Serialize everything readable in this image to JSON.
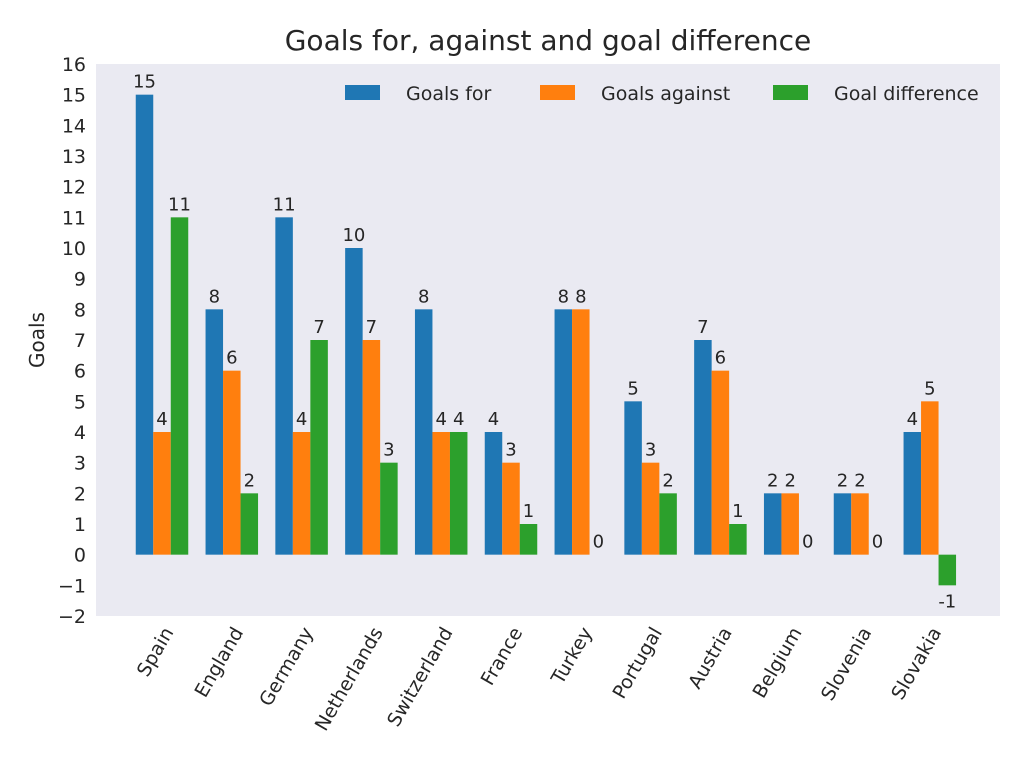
{
  "chart_data": {
    "type": "bar",
    "title": "Goals for, against and goal difference",
    "xlabel": "",
    "ylabel": "Goals",
    "ylim": [
      -2,
      16
    ],
    "yticks": [
      -2,
      -1,
      0,
      1,
      2,
      3,
      4,
      5,
      6,
      7,
      8,
      9,
      10,
      11,
      12,
      13,
      14,
      15,
      16
    ],
    "ytick_labels": [
      "−2",
      "−1",
      "0",
      "1",
      "2",
      "3",
      "4",
      "5",
      "6",
      "7",
      "8",
      "9",
      "10",
      "11",
      "12",
      "13",
      "14",
      "15",
      "16"
    ],
    "grid": false,
    "legend_position": "top-right",
    "categories": [
      "Spain",
      "England",
      "Germany",
      "Netherlands",
      "Switzerland",
      "France",
      "Turkey",
      "Portugal",
      "Austria",
      "Belgium",
      "Slovenia",
      "Slovakia"
    ],
    "series": [
      {
        "name": "Goals for",
        "color": "#1f77b4",
        "values": [
          15,
          8,
          11,
          10,
          8,
          4,
          8,
          5,
          7,
          2,
          2,
          4
        ]
      },
      {
        "name": "Goals against",
        "color": "#ff7f0e",
        "values": [
          4,
          6,
          4,
          7,
          4,
          3,
          8,
          3,
          6,
          2,
          2,
          5
        ]
      },
      {
        "name": "Goal difference",
        "color": "#2ca02c",
        "values": [
          11,
          2,
          7,
          3,
          4,
          1,
          0,
          2,
          1,
          0,
          0,
          -1
        ]
      }
    ],
    "plot_background": "#eaeaf2"
  }
}
